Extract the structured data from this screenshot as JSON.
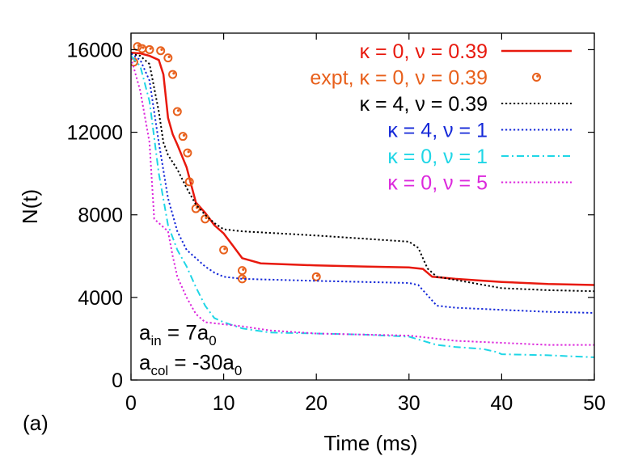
{
  "panel_label": "(a)",
  "chart_data": {
    "type": "line",
    "xlabel": "Time (ms)",
    "ylabel": "N(t)",
    "xlim": [
      0,
      50
    ],
    "ylim": [
      0,
      16800
    ],
    "xticks": [
      0,
      10,
      20,
      30,
      40,
      50
    ],
    "yticks": [
      0,
      4000,
      8000,
      12000,
      16000
    ],
    "grid": false,
    "legend_position": "top-right",
    "annotations": [
      {
        "base": "a",
        "sub": "in",
        "rest": " = 7a",
        "rest_sub": "0"
      },
      {
        "base": "a",
        "sub": "col",
        "rest": " = -30a",
        "rest_sub": "0"
      }
    ],
    "series": [
      {
        "name": "κ = 0, ν = 0.39",
        "color": "#e8190e",
        "style": "solid",
        "points": [
          [
            0,
            15850
          ],
          [
            1,
            15820
          ],
          [
            2,
            15700
          ],
          [
            3,
            15500
          ],
          [
            3.5,
            14800
          ],
          [
            4,
            12700
          ],
          [
            4.5,
            11900
          ],
          [
            5,
            11400
          ],
          [
            6,
            10300
          ],
          [
            7,
            8600
          ],
          [
            8,
            8100
          ],
          [
            9,
            7500
          ],
          [
            10,
            7100
          ],
          [
            11,
            6500
          ],
          [
            12,
            5900
          ],
          [
            14,
            5650
          ],
          [
            20,
            5550
          ],
          [
            25,
            5500
          ],
          [
            30,
            5450
          ],
          [
            31.5,
            5380
          ],
          [
            32.5,
            5000
          ],
          [
            33,
            4980
          ],
          [
            35,
            4900
          ],
          [
            40,
            4750
          ],
          [
            45,
            4650
          ],
          [
            50,
            4600
          ]
        ]
      },
      {
        "name": "expt, κ = 0, ν = 0.39",
        "color": "#e8601c",
        "style": "circles",
        "points": [
          [
            0.3,
            15400
          ],
          [
            0.7,
            16150
          ],
          [
            1.2,
            16050
          ],
          [
            2,
            16000
          ],
          [
            3.2,
            15950
          ],
          [
            4,
            15600
          ],
          [
            4.5,
            14800
          ],
          [
            5,
            13000
          ],
          [
            5.6,
            11800
          ],
          [
            6.1,
            11000
          ],
          [
            6.3,
            9600
          ],
          [
            7,
            8300
          ],
          [
            8,
            7800
          ],
          [
            10,
            6300
          ],
          [
            12,
            5300
          ],
          [
            12,
            4900
          ],
          [
            20,
            5000
          ]
        ]
      },
      {
        "name": "κ = 4, ν = 0.39",
        "color": "#000000",
        "style": "dotted",
        "points": [
          [
            0,
            15800
          ],
          [
            1,
            15700
          ],
          [
            2,
            15300
          ],
          [
            3,
            13000
          ],
          [
            3.5,
            11500
          ],
          [
            4,
            10900
          ],
          [
            5,
            10200
          ],
          [
            6,
            9300
          ],
          [
            7,
            8500
          ],
          [
            8,
            8000
          ],
          [
            9,
            7600
          ],
          [
            10,
            7300
          ],
          [
            12,
            7200
          ],
          [
            20,
            7000
          ],
          [
            30,
            6700
          ],
          [
            31,
            6400
          ],
          [
            32,
            5400
          ],
          [
            33,
            5000
          ],
          [
            35,
            4850
          ],
          [
            40,
            4450
          ],
          [
            45,
            4350
          ],
          [
            50,
            4300
          ]
        ]
      },
      {
        "name": "κ = 4, ν = 1",
        "color": "#1428d8",
        "style": "dotted",
        "points": [
          [
            0,
            15800
          ],
          [
            1,
            15500
          ],
          [
            2,
            14500
          ],
          [
            3,
            11500
          ],
          [
            4,
            8800
          ],
          [
            5,
            7200
          ],
          [
            6,
            6300
          ],
          [
            7,
            5900
          ],
          [
            8,
            5500
          ],
          [
            9,
            5200
          ],
          [
            10,
            5000
          ],
          [
            12,
            4900
          ],
          [
            20,
            4800
          ],
          [
            30,
            4700
          ],
          [
            31,
            4600
          ],
          [
            32,
            4100
          ],
          [
            33,
            3600
          ],
          [
            35,
            3500
          ],
          [
            40,
            3400
          ],
          [
            45,
            3300
          ],
          [
            50,
            3250
          ]
        ]
      },
      {
        "name": "κ = 0, ν = 1",
        "color": "#1fd6e6",
        "style": "dashdot",
        "points": [
          [
            0,
            15700
          ],
          [
            1,
            15200
          ],
          [
            2,
            13500
          ],
          [
            3,
            10000
          ],
          [
            4,
            7500
          ],
          [
            5,
            6300
          ],
          [
            6,
            5500
          ],
          [
            7,
            4500
          ],
          [
            8,
            3600
          ],
          [
            9,
            3000
          ],
          [
            10,
            2800
          ],
          [
            12,
            2500
          ],
          [
            15,
            2300
          ],
          [
            20,
            2250
          ],
          [
            25,
            2200
          ],
          [
            30,
            2100
          ],
          [
            33,
            1700
          ],
          [
            35,
            1600
          ],
          [
            38,
            1500
          ],
          [
            39.5,
            1350
          ],
          [
            40,
            1250
          ],
          [
            45,
            1200
          ],
          [
            50,
            1100
          ]
        ]
      },
      {
        "name": "κ = 0, ν = 5",
        "color": "#dc28dc",
        "style": "dotted",
        "points": [
          [
            0,
            15600
          ],
          [
            1,
            14000
          ],
          [
            2,
            11500
          ],
          [
            2.5,
            7800
          ],
          [
            3,
            7600
          ],
          [
            4,
            7200
          ],
          [
            4.5,
            6000
          ],
          [
            5,
            5000
          ],
          [
            6,
            4000
          ],
          [
            7,
            3200
          ],
          [
            8,
            2800
          ],
          [
            10,
            2700
          ],
          [
            12,
            2600
          ],
          [
            15,
            2400
          ],
          [
            20,
            2250
          ],
          [
            25,
            2200
          ],
          [
            30,
            2150
          ],
          [
            33,
            2000
          ],
          [
            35,
            1900
          ],
          [
            40,
            1800
          ],
          [
            45,
            1700
          ],
          [
            50,
            1700
          ]
        ]
      }
    ]
  }
}
